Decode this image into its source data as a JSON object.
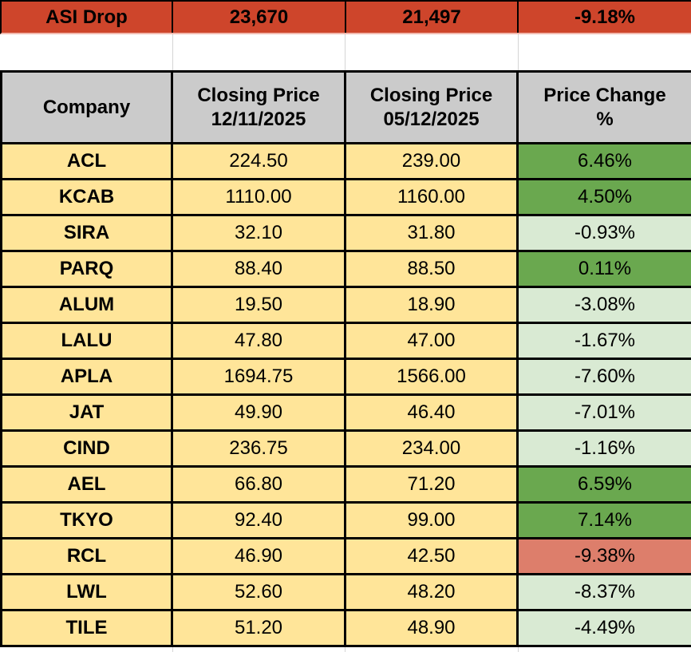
{
  "index_row": {
    "label": "ASI Drop",
    "value_before": "23,670",
    "value_after": "21,497",
    "change_pct": "-9.18%"
  },
  "table_header": {
    "company": "Company",
    "col2_line1": "Closing Price",
    "col2_line2": "12/11/2025",
    "col3_line1": "Closing Price",
    "col3_line2": "05/12/2025",
    "col4_line1": "Price Change",
    "col4_line2": "%"
  },
  "colors": {
    "index_row_bg": "#CE452B",
    "header_bg": "#CBCBCB",
    "row_bg": "#FFE599",
    "positive_change_bg": "#6AA84F",
    "negative_change_bg": "#D9EAD3",
    "underperform_change_bg": "#DD7E6B",
    "border": "#000000",
    "gridline": "#D5D5D5"
  },
  "chart_data": {
    "type": "table",
    "title": "ASI Drop",
    "index_summary": {
      "label": "ASI Drop",
      "index_value_12_11_2025": "23,670",
      "index_value_05_12_2025": "21,497",
      "index_change_pct": "-9.18%"
    },
    "columns": [
      "Company",
      "Closing Price 12/11/2025",
      "Closing Price 05/12/2025",
      "Price Change %"
    ],
    "rows": [
      {
        "company": "ACL",
        "closing_12_11_2025": "224.50",
        "closing_05_12_2025": "239.00",
        "price_change_pct": "6.46%",
        "tone": "positive"
      },
      {
        "company": "KCAB",
        "closing_12_11_2025": "1110.00",
        "closing_05_12_2025": "1160.00",
        "price_change_pct": "4.50%",
        "tone": "positive"
      },
      {
        "company": "SIRA",
        "closing_12_11_2025": "32.10",
        "closing_05_12_2025": "31.80",
        "price_change_pct": "-0.93%",
        "tone": "negative"
      },
      {
        "company": "PARQ",
        "closing_12_11_2025": "88.40",
        "closing_05_12_2025": "88.50",
        "price_change_pct": "0.11%",
        "tone": "positive"
      },
      {
        "company": "ALUM",
        "closing_12_11_2025": "19.50",
        "closing_05_12_2025": "18.90",
        "price_change_pct": "-3.08%",
        "tone": "negative"
      },
      {
        "company": "LALU",
        "closing_12_11_2025": "47.80",
        "closing_05_12_2025": "47.00",
        "price_change_pct": "-1.67%",
        "tone": "negative"
      },
      {
        "company": "APLA",
        "closing_12_11_2025": "1694.75",
        "closing_05_12_2025": "1566.00",
        "price_change_pct": "-7.60%",
        "tone": "negative"
      },
      {
        "company": "JAT",
        "closing_12_11_2025": "49.90",
        "closing_05_12_2025": "46.40",
        "price_change_pct": "-7.01%",
        "tone": "negative"
      },
      {
        "company": "CIND",
        "closing_12_11_2025": "236.75",
        "closing_05_12_2025": "234.00",
        "price_change_pct": "-1.16%",
        "tone": "negative"
      },
      {
        "company": "AEL",
        "closing_12_11_2025": "66.80",
        "closing_05_12_2025": "71.20",
        "price_change_pct": "6.59%",
        "tone": "positive"
      },
      {
        "company": "TKYO",
        "closing_12_11_2025": "92.40",
        "closing_05_12_2025": "99.00",
        "price_change_pct": "7.14%",
        "tone": "positive"
      },
      {
        "company": "RCL",
        "closing_12_11_2025": "46.90",
        "closing_05_12_2025": "42.50",
        "price_change_pct": "-9.38%",
        "tone": "underperform"
      },
      {
        "company": "LWL",
        "closing_12_11_2025": "52.60",
        "closing_05_12_2025": "48.20",
        "price_change_pct": "-8.37%",
        "tone": "negative"
      },
      {
        "company": "TILE",
        "closing_12_11_2025": "51.20",
        "closing_05_12_2025": "48.90",
        "price_change_pct": "-4.49%",
        "tone": "negative"
      }
    ]
  }
}
